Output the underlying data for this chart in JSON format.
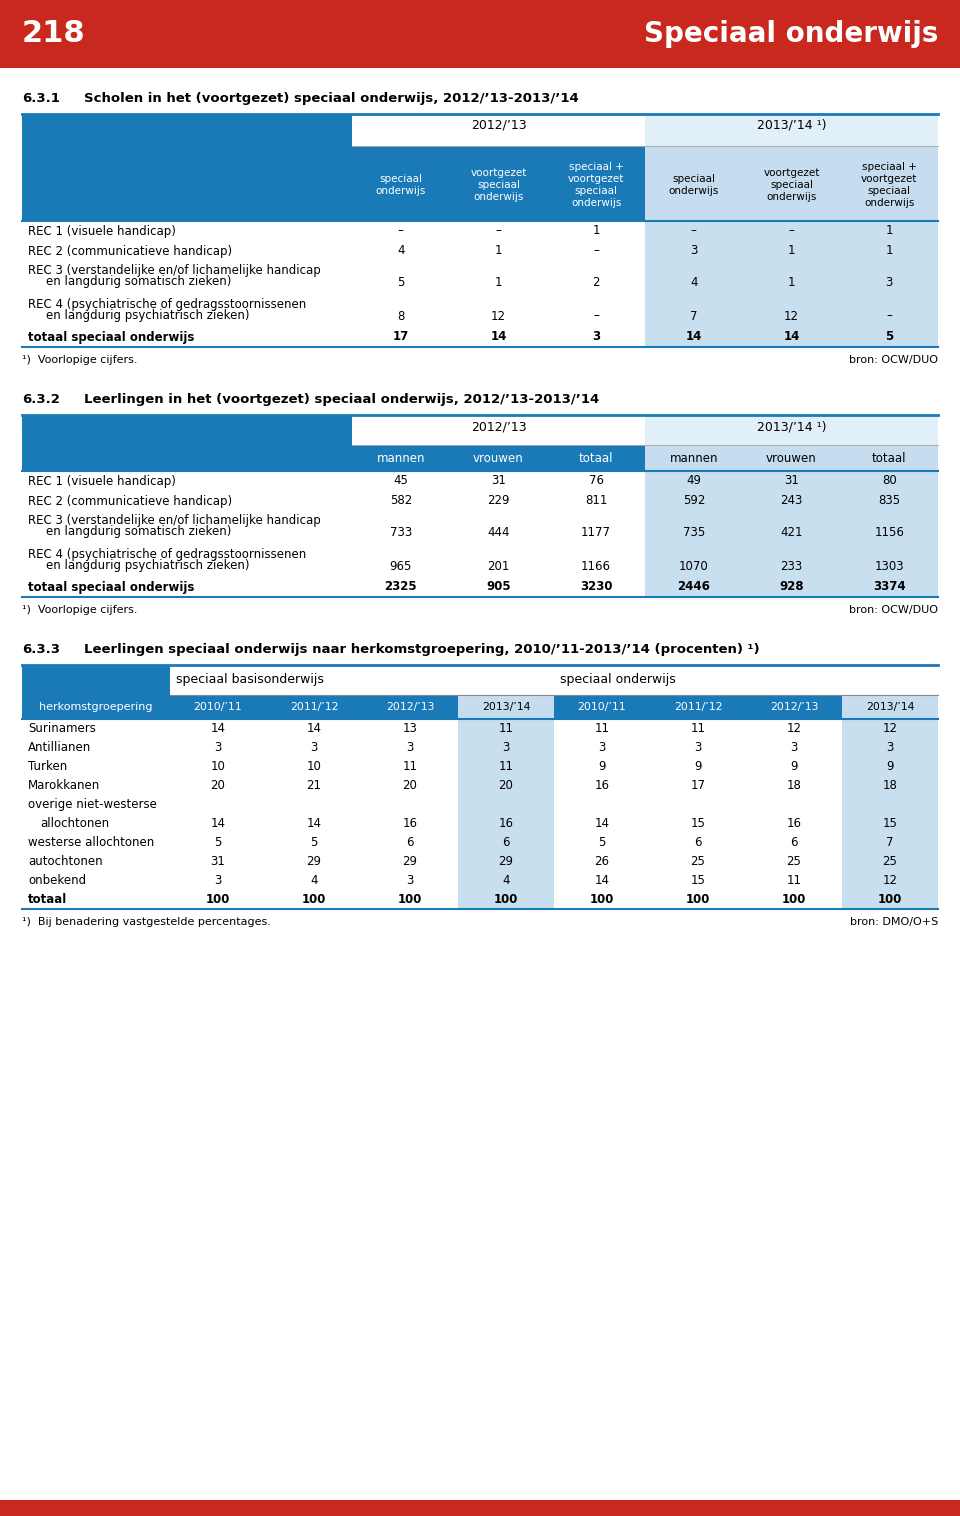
{
  "page_number": "218",
  "page_title": "Speciaal onderwijs",
  "header_bg": "#C8281E",
  "blue_dark": "#1A7AB8",
  "blue_light": "#C5DDEF",
  "blue_col_highlight": "#C5DDEF",
  "section1": {
    "number": "6.3.1",
    "title": "Scholen in het (voortgezet) speciaal onderwijs, 2012/’13-2013/’14",
    "year1": "2012/’13",
    "year2": "2013/’14 ¹)",
    "col_headers": [
      [
        "speciaal",
        "onderwijs"
      ],
      [
        "voortgezet",
        "speciaal",
        "onderwijs"
      ],
      [
        "speciaal +",
        "voortgezet",
        "speciaal",
        "onderwijs"
      ],
      [
        "speciaal",
        "onderwijs"
      ],
      [
        "voortgezet",
        "speciaal",
        "onderwijs"
      ],
      [
        "speciaal +",
        "voortgezet",
        "speciaal",
        "onderwijs"
      ]
    ],
    "rows": [
      {
        "label1": "REC 1 (visuele handicap)",
        "label2": "",
        "values": [
          "–",
          "–",
          "1",
          "–",
          "–",
          "1"
        ]
      },
      {
        "label1": "REC 2 (communicatieve handicap)",
        "label2": "",
        "values": [
          "4",
          "1",
          "–",
          "3",
          "1",
          "1"
        ]
      },
      {
        "label1": "REC 3 (verstandelijke en/of lichamelijke handicap",
        "label2": "en langdurig somatisch zieken)",
        "values": [
          "5",
          "1",
          "2",
          "4",
          "1",
          "3"
        ]
      },
      {
        "label1": "REC 4 (psychiatrische of gedragsstoornissenen",
        "label2": "en langdurig psychiatrisch zieken)",
        "values": [
          "8",
          "12",
          "–",
          "7",
          "12",
          "–"
        ]
      },
      {
        "label1": "totaal speciaal onderwijs",
        "label2": "",
        "values": [
          "17",
          "14",
          "3",
          "14",
          "14",
          "5"
        ],
        "bold": true
      }
    ],
    "footnote": "¹)  Voorlopige cijfers.",
    "source": "bron: OCW/DUO"
  },
  "section2": {
    "number": "6.3.2",
    "title": "Leerlingen in het (voortgezet) speciaal onderwijs, 2012/’13-2013/’14",
    "year1": "2012/’13",
    "year2": "2013/’14 ¹)",
    "col_headers": [
      "mannen",
      "vrouwen",
      "totaal",
      "mannen",
      "vrouwen",
      "totaal"
    ],
    "rows": [
      {
        "label1": "REC 1 (visuele handicap)",
        "label2": "",
        "values": [
          "45",
          "31",
          "76",
          "49",
          "31",
          "80"
        ]
      },
      {
        "label1": "REC 2 (communicatieve handicap)",
        "label2": "",
        "values": [
          "582",
          "229",
          "811",
          "592",
          "243",
          "835"
        ]
      },
      {
        "label1": "REC 3 (verstandelijke en/of lichamelijke handicap",
        "label2": "en langdurig somatisch zieken)",
        "values": [
          "733",
          "444",
          "1177",
          "735",
          "421",
          "1156"
        ]
      },
      {
        "label1": "REC 4 (psychiatrische of gedragsstoornissenen",
        "label2": "en langdurig psychiatrisch zieken)",
        "values": [
          "965",
          "201",
          "1166",
          "1070",
          "233",
          "1303"
        ]
      },
      {
        "label1": "totaal speciaal onderwijs",
        "label2": "",
        "values": [
          "2325",
          "905",
          "3230",
          "2446",
          "928",
          "3374"
        ],
        "bold": true
      }
    ],
    "footnote": "¹)  Voorlopige cijfers.",
    "source": "bron: OCW/DUO"
  },
  "section3": {
    "number": "6.3.3",
    "title": "Leerlingen speciaal onderwijs naar herkomstgroepering, 2010/’11-2013/’14 (procenten) ¹)",
    "col_group1": "speciaal basisonderwijs",
    "col_group2": "speciaal onderwijs",
    "col_headers": [
      "2010/’11",
      "2011/’12",
      "2012/’13",
      "2013/’14",
      "2010/’11",
      "2011/’12",
      "2012/’13",
      "2013/’14"
    ],
    "row_header": "herkomstgroepering",
    "rows": [
      {
        "label": "Surinamers",
        "values": [
          "14",
          "14",
          "13",
          "11",
          "11",
          "11",
          "12",
          "12"
        ]
      },
      {
        "label": "Antillianen",
        "values": [
          "3",
          "3",
          "3",
          "3",
          "3",
          "3",
          "3",
          "3"
        ]
      },
      {
        "label": "Turken",
        "values": [
          "10",
          "10",
          "11",
          "11",
          "9",
          "9",
          "9",
          "9"
        ]
      },
      {
        "label": "Marokkanen",
        "values": [
          "20",
          "21",
          "20",
          "20",
          "16",
          "17",
          "18",
          "18"
        ]
      },
      {
        "label": "overige niet-westerse",
        "values": [
          "",
          "",
          "",
          "",
          "",
          "",
          "",
          ""
        ]
      },
      {
        "label": "allochtonen",
        "values": [
          "14",
          "14",
          "16",
          "16",
          "14",
          "15",
          "16",
          "15"
        ],
        "indent": true
      },
      {
        "label": "westerse allochtonen",
        "values": [
          "5",
          "5",
          "6",
          "6",
          "5",
          "6",
          "6",
          "7"
        ]
      },
      {
        "label": "autochtonen",
        "values": [
          "31",
          "29",
          "29",
          "29",
          "26",
          "25",
          "25",
          "25"
        ]
      },
      {
        "label": "onbekend",
        "values": [
          "3",
          "4",
          "3",
          "4",
          "14",
          "15",
          "11",
          "12"
        ]
      },
      {
        "label": "totaal",
        "values": [
          "100",
          "100",
          "100",
          "100",
          "100",
          "100",
          "100",
          "100"
        ],
        "bold": true
      }
    ],
    "footnote": "¹)  Bij benadering vastgestelde percentages.",
    "source": "bron: DMO/O+S"
  }
}
